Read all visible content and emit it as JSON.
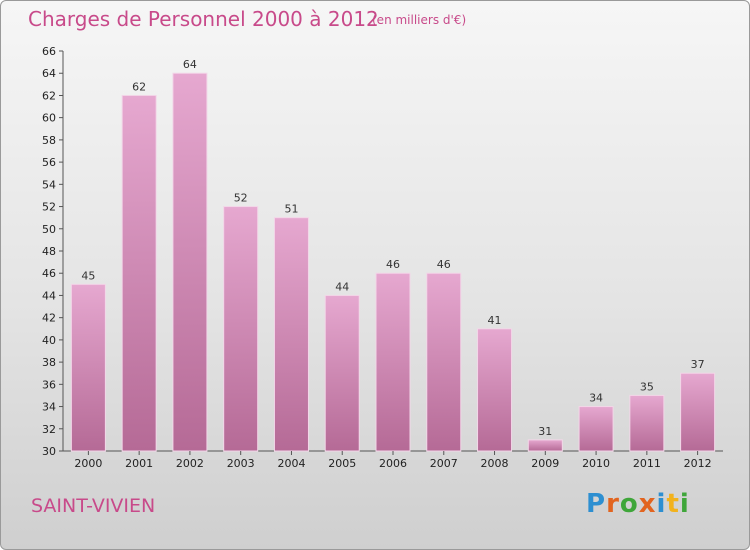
{
  "header": {
    "title": "Charges de Personnel 2000 à 2012",
    "subtitle": "(en milliers d'€)"
  },
  "footer": {
    "place": "SAINT-VIVIEN",
    "brand_letters": [
      "P",
      "r",
      "o",
      "x",
      "i",
      "t",
      "i"
    ],
    "brand_colors": [
      "#2d8fd1",
      "#e2641f",
      "#3fa63a",
      "#e2641f",
      "#2d8fd1",
      "#f2b21c",
      "#3fa63a"
    ]
  },
  "colors": {
    "bar_top": "#e6a8d0",
    "bar_bottom": "#b56a96",
    "accent": "#c84a8a"
  },
  "chart_data": {
    "type": "bar",
    "title": "Charges de Personnel 2000 à 2012",
    "subtitle": "(en milliers d'€)",
    "xlabel": "",
    "ylabel": "",
    "categories": [
      "2000",
      "2001",
      "2002",
      "2003",
      "2004",
      "2005",
      "2006",
      "2007",
      "2008",
      "2009",
      "2010",
      "2011",
      "2012"
    ],
    "values": [
      45,
      62,
      64,
      52,
      51,
      44,
      46,
      46,
      41,
      31,
      34,
      35,
      37
    ],
    "ylim": [
      30,
      66
    ],
    "ytick_step": 2,
    "grid": false,
    "legend": "none"
  }
}
